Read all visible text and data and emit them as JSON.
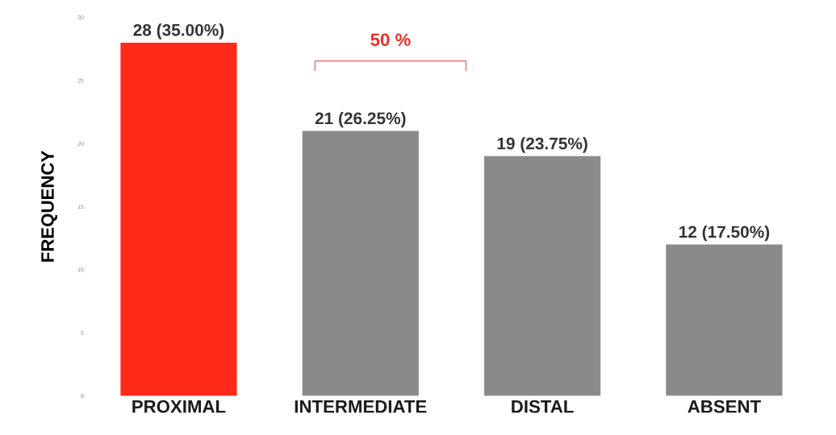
{
  "chart_data": {
    "type": "bar",
    "ylabel": "FREQUENCY",
    "categories": [
      "PROXIMAL",
      "INTERMEDIATE",
      "DISTAL",
      "ABSENT"
    ],
    "values": [
      28,
      21,
      19,
      12
    ],
    "colors": [
      "#ff2a1a",
      "#8a8a8a",
      "#8a8a8a",
      "#8a8a8a"
    ],
    "value_labels": [
      "28 (35.00%)",
      "21 (26.25%)",
      "19 (23.75%)",
      "12 (17.50%)"
    ],
    "ylim": [
      0,
      30
    ],
    "yticks": [
      0,
      5,
      10,
      15,
      20,
      25,
      30
    ],
    "grid": false,
    "legend": false,
    "annotations": [
      "50 %"
    ]
  }
}
